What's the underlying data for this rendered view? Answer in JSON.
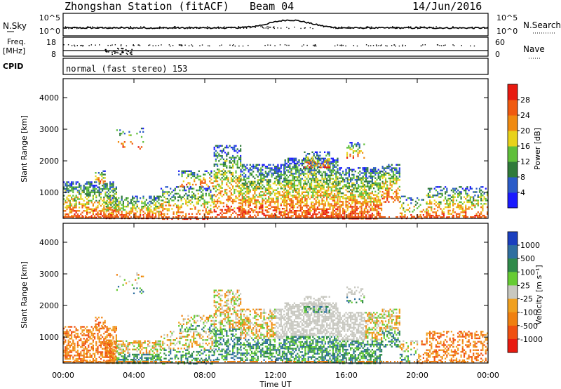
{
  "header": {
    "station": "Zhongshan Station (fitACF)",
    "beam": "Beam 04",
    "date": "14/Jun/2016"
  },
  "strips": {
    "nsky_label": "N.Sky",
    "nsky_ticks": [
      "10^5",
      "10^0"
    ],
    "nsearch_label": "N.Search",
    "nsearch_ticks": [
      "10^5",
      "10^0"
    ],
    "freq_label": "Freq.",
    "freq_unit": "[MHz]",
    "freq_ticks": [
      "18",
      "8"
    ],
    "nave_label": "Nave",
    "nave_ticks": [
      "60",
      "0"
    ],
    "cpid_label": "CPID",
    "cpid_text": "normal (fast stereo) 153"
  },
  "chart_data": [
    {
      "type": "heatmap",
      "name": "power",
      "ylabel": "Slant Range [km]",
      "ylim": [
        180,
        4600
      ],
      "yticks": [
        "1000",
        "2000",
        "3000",
        "4000"
      ],
      "xlim": [
        0,
        24
      ],
      "colorbar": {
        "label": "Power [dB]",
        "ticks": [
          "4",
          "8",
          "12",
          "16",
          "20",
          "24",
          "28"
        ],
        "colors": [
          "#1a1aff",
          "#2a5bc8",
          "#2f7a3a",
          "#5fbf3a",
          "#e8d21a",
          "#f08a10",
          "#f05a10",
          "#e81a10"
        ]
      }
    },
    {
      "type": "heatmap",
      "name": "velocity",
      "ylabel": "Slant Range [km]",
      "ylim": [
        180,
        4600
      ],
      "yticks": [
        "1000",
        "2000",
        "3000",
        "4000"
      ],
      "xlim": [
        0,
        24
      ],
      "xlabel": "Time UT",
      "xticks": [
        "00:00",
        "04:00",
        "08:00",
        "12:00",
        "16:00",
        "20:00",
        "00:00"
      ],
      "colorbar": {
        "label": "Velocity [m s⁻¹]",
        "ticks": [
          "1000",
          "500",
          "100",
          "25",
          "-25",
          "-100",
          "-500",
          "-1000"
        ],
        "colors": [
          "#1a3fbf",
          "#2f6fa0",
          "#2f8a4a",
          "#66cc33",
          "#c8c8c0",
          "#f0a020",
          "#f08010",
          "#f05010",
          "#e81a10"
        ]
      }
    }
  ]
}
